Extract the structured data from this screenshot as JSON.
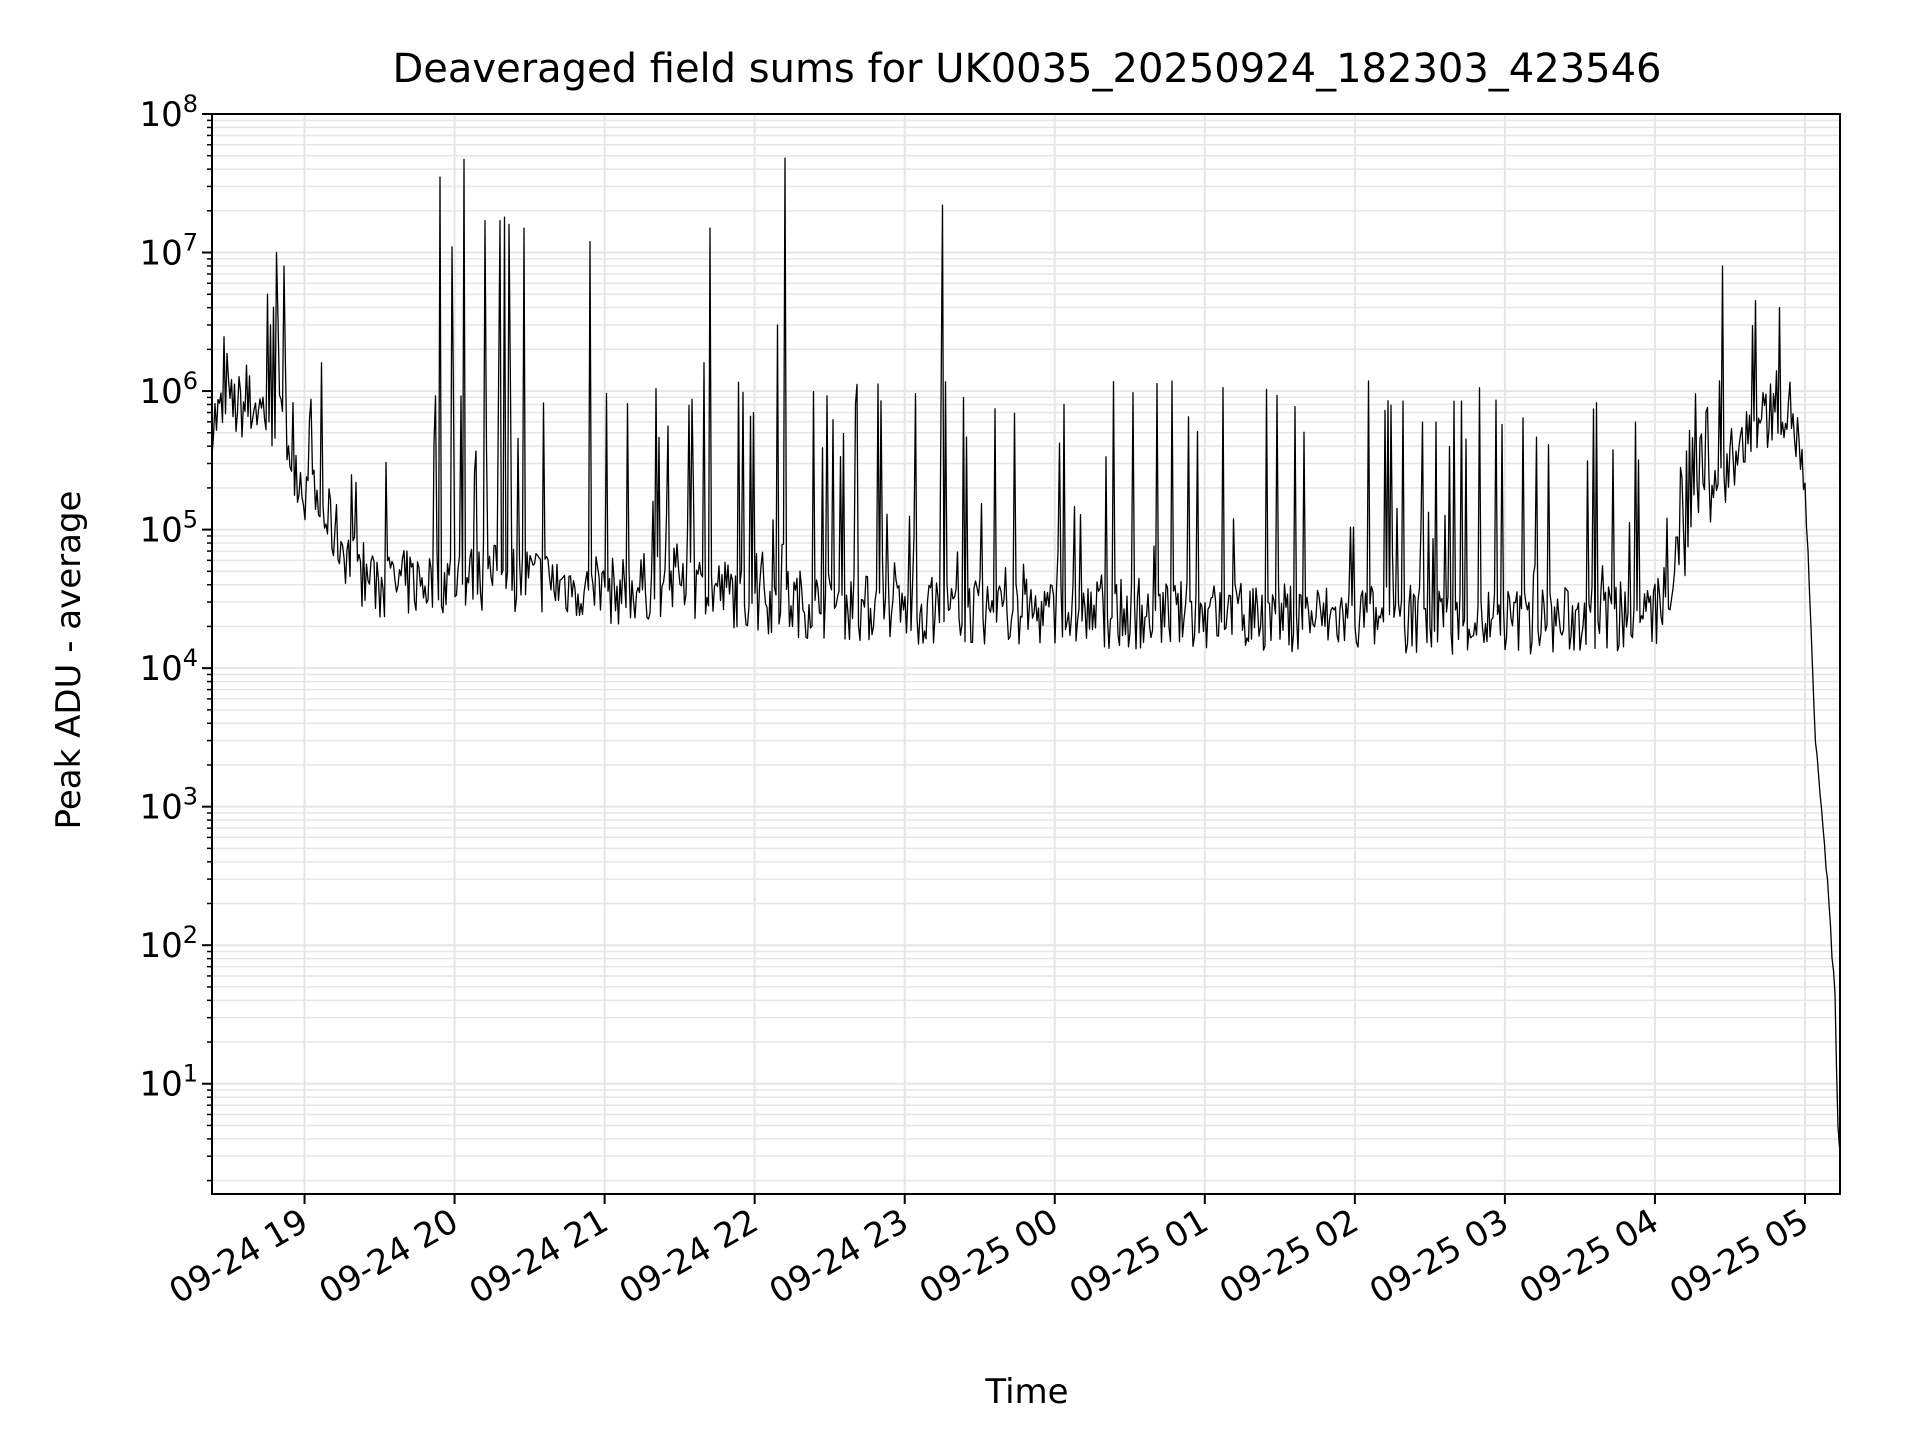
{
  "chart_data": {
    "type": "line",
    "title": "Deaveraged field sums for UK0035_20250924_182303_423546",
    "xlabel": "Time",
    "ylabel": "Peak ADU - average",
    "x_start": "2025-09-24 18:23",
    "x_end": "2025-09-25 05:14",
    "xlim": [
      "2025-09-24 18:23",
      "2025-09-25 05:14"
    ],
    "ylim": [
      1.6,
      100000000
    ],
    "yscale": "log",
    "grid": true,
    "legend": "none",
    "line_color": "#000000",
    "grid_color": "#e6e6e6",
    "x_ticks": [
      {
        "value": "2025-09-24 19:00",
        "label": "09-24 19"
      },
      {
        "value": "2025-09-24 20:00",
        "label": "09-24 20"
      },
      {
        "value": "2025-09-24 21:00",
        "label": "09-24 21"
      },
      {
        "value": "2025-09-24 22:00",
        "label": "09-24 22"
      },
      {
        "value": "2025-09-24 23:00",
        "label": "09-24 23"
      },
      {
        "value": "2025-09-25 00:00",
        "label": "09-25 00"
      },
      {
        "value": "2025-09-25 01:00",
        "label": "09-25 01"
      },
      {
        "value": "2025-09-25 02:00",
        "label": "09-25 02"
      },
      {
        "value": "2025-09-25 03:00",
        "label": "09-25 03"
      },
      {
        "value": "2025-09-25 04:00",
        "label": "09-25 04"
      },
      {
        "value": "2025-09-25 05:00",
        "label": "09-25 05"
      }
    ],
    "y_ticks": [
      {
        "value": 10,
        "base": "10",
        "exp": "1"
      },
      {
        "value": 100,
        "base": "10",
        "exp": "2"
      },
      {
        "value": 1000,
        "base": "10",
        "exp": "3"
      },
      {
        "value": 10000,
        "base": "10",
        "exp": "4"
      },
      {
        "value": 100000,
        "base": "10",
        "exp": "5"
      },
      {
        "value": 1000000,
        "base": "10",
        "exp": "6"
      },
      {
        "value": 10000000,
        "base": "10",
        "exp": "7"
      },
      {
        "value": 100000000,
        "base": "10",
        "exp": "8"
      }
    ],
    "baseline": [
      {
        "x": "2025-09-24 18:23",
        "y": 600000
      },
      {
        "x": "2025-09-24 18:30",
        "y": 750000
      },
      {
        "x": "2025-09-24 18:40",
        "y": 800000
      },
      {
        "x": "2025-09-24 18:50",
        "y": 600000
      },
      {
        "x": "2025-09-24 18:55",
        "y": 350000
      },
      {
        "x": "2025-09-24 19:00",
        "y": 200000
      },
      {
        "x": "2025-09-24 19:10",
        "y": 110000
      },
      {
        "x": "2025-09-24 19:20",
        "y": 55000
      },
      {
        "x": "2025-09-24 19:30",
        "y": 38000
      },
      {
        "x": "2025-09-24 20:00",
        "y": 45000
      },
      {
        "x": "2025-09-24 20:30",
        "y": 45000
      },
      {
        "x": "2025-09-24 21:00",
        "y": 35000
      },
      {
        "x": "2025-09-24 21:30",
        "y": 42000
      },
      {
        "x": "2025-09-24 22:00",
        "y": 32000
      },
      {
        "x": "2025-09-24 22:30",
        "y": 28000
      },
      {
        "x": "2025-09-24 23:00",
        "y": 26000
      },
      {
        "x": "2025-09-25 00:00",
        "y": 25000
      },
      {
        "x": "2025-09-25 01:00",
        "y": 24000
      },
      {
        "x": "2025-09-25 02:00",
        "y": 23000
      },
      {
        "x": "2025-09-25 03:00",
        "y": 22000
      },
      {
        "x": "2025-09-25 03:30",
        "y": 22000
      },
      {
        "x": "2025-09-25 04:00",
        "y": 24000
      },
      {
        "x": "2025-09-25 04:10",
        "y": 60000
      },
      {
        "x": "2025-09-25 04:20",
        "y": 180000
      },
      {
        "x": "2025-09-25 04:30",
        "y": 300000
      },
      {
        "x": "2025-09-25 04:40",
        "y": 500000
      },
      {
        "x": "2025-09-25 04:48",
        "y": 800000
      },
      {
        "x": "2025-09-25 04:55",
        "y": 700000
      },
      {
        "x": "2025-09-25 05:00",
        "y": 200000
      },
      {
        "x": "2025-09-25 05:02",
        "y": 30000
      },
      {
        "x": "2025-09-25 05:04",
        "y": 3000
      },
      {
        "x": "2025-09-25 05:07",
        "y": 800
      },
      {
        "x": "2025-09-25 05:10",
        "y": 150
      },
      {
        "x": "2025-09-25 05:12",
        "y": 40
      },
      {
        "x": "2025-09-25 05:13",
        "y": 5
      },
      {
        "x": "2025-09-25 05:14",
        "y": 3.7
      }
    ],
    "spikes": [
      {
        "x": "2025-09-24 18:45",
        "y": 5000000
      },
      {
        "x": "2025-09-24 18:49",
        "y": 10000000
      },
      {
        "x": "2025-09-24 18:52",
        "y": 8000000
      },
      {
        "x": "2025-09-24 19:07",
        "y": 1600000
      },
      {
        "x": "2025-09-24 19:54",
        "y": 35000000
      },
      {
        "x": "2025-09-24 19:59",
        "y": 11000000
      },
      {
        "x": "2025-09-24 20:04",
        "y": 47000000
      },
      {
        "x": "2025-09-24 20:12",
        "y": 17000000
      },
      {
        "x": "2025-09-24 20:18",
        "y": 17000000
      },
      {
        "x": "2025-09-24 20:20",
        "y": 18000000
      },
      {
        "x": "2025-09-24 20:22",
        "y": 16000000
      },
      {
        "x": "2025-09-24 20:28",
        "y": 15000000
      },
      {
        "x": "2025-09-24 20:54",
        "y": 12000000
      },
      {
        "x": "2025-09-24 21:40",
        "y": 1600000
      },
      {
        "x": "2025-09-24 21:42",
        "y": 15000000
      },
      {
        "x": "2025-09-24 22:09",
        "y": 3000000
      },
      {
        "x": "2025-09-24 22:12",
        "y": 48000000
      },
      {
        "x": "2025-09-24 23:15",
        "y": 22000000
      },
      {
        "x": "2025-09-25 04:27",
        "y": 8000000
      },
      {
        "x": "2025-09-25 04:40",
        "y": 4500000
      },
      {
        "x": "2025-09-25 04:50",
        "y": 4000000
      }
    ]
  }
}
